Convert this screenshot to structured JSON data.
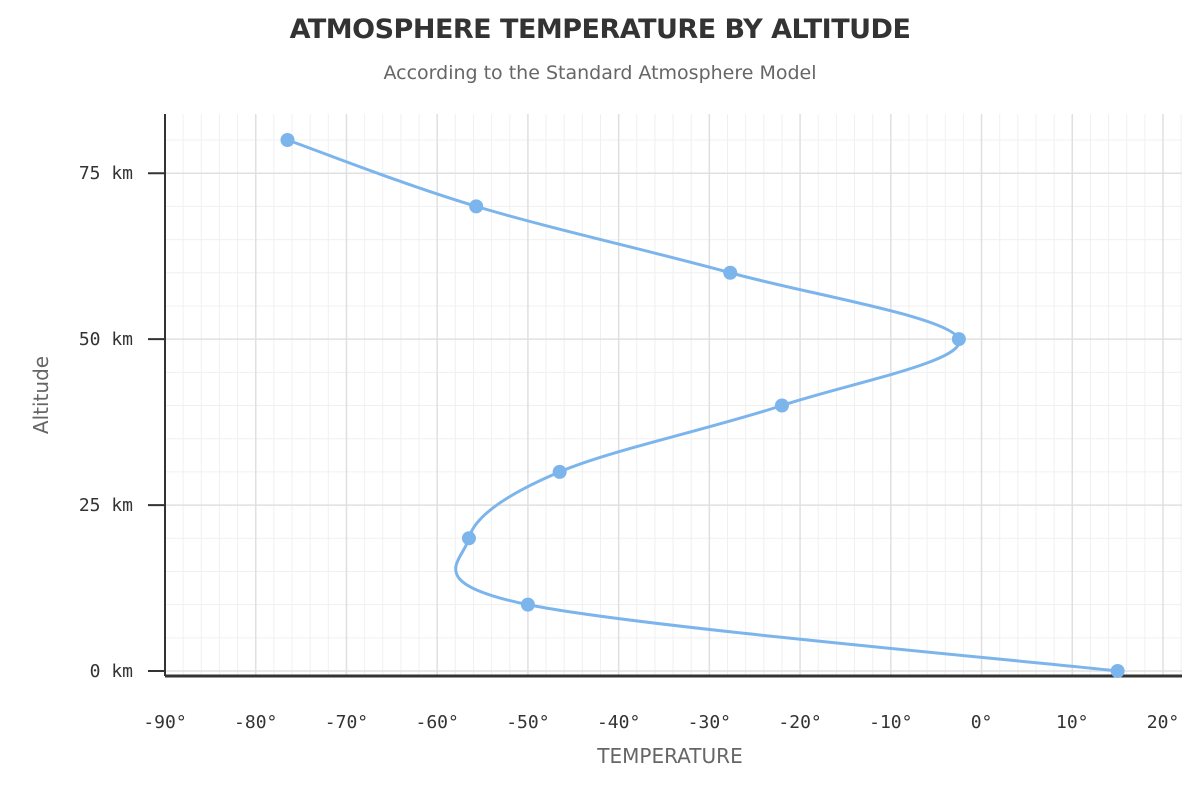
{
  "chart_data": {
    "type": "line",
    "title": "ATMOSPHERE TEMPERATURE BY ALTITUDE",
    "subtitle": "According to the Standard Atmosphere Model",
    "xlabel": "TEMPERATURE",
    "ylabel": "Altitude",
    "xlim": [
      -90,
      20
    ],
    "ylim": [
      0,
      80
    ],
    "x_ticks": [
      -90,
      -80,
      -70,
      -60,
      -50,
      -40,
      -30,
      -20,
      -10,
      0,
      10,
      20
    ],
    "x_tick_labels": [
      "-90°",
      "-80°",
      "-70°",
      "-60°",
      "-50°",
      "-40°",
      "-30°",
      "-20°",
      "-10°",
      "0°",
      "10°",
      "20°"
    ],
    "y_ticks": [
      0,
      25,
      50,
      75
    ],
    "y_tick_labels": [
      "0 km",
      "25 km",
      "50 km",
      "75 km"
    ],
    "grid": true,
    "series": [
      {
        "color": "#7cb5ec",
        "points": [
          {
            "x": 15,
            "y": 0
          },
          {
            "x": -50,
            "y": 10
          },
          {
            "x": -56.5,
            "y": 20
          },
          {
            "x": -46.5,
            "y": 30
          },
          {
            "x": -22,
            "y": 40
          },
          {
            "x": -2.5,
            "y": 50
          },
          {
            "x": -27.7,
            "y": 60
          },
          {
            "x": -55.7,
            "y": 70
          },
          {
            "x": -76.5,
            "y": 80
          }
        ]
      }
    ]
  }
}
